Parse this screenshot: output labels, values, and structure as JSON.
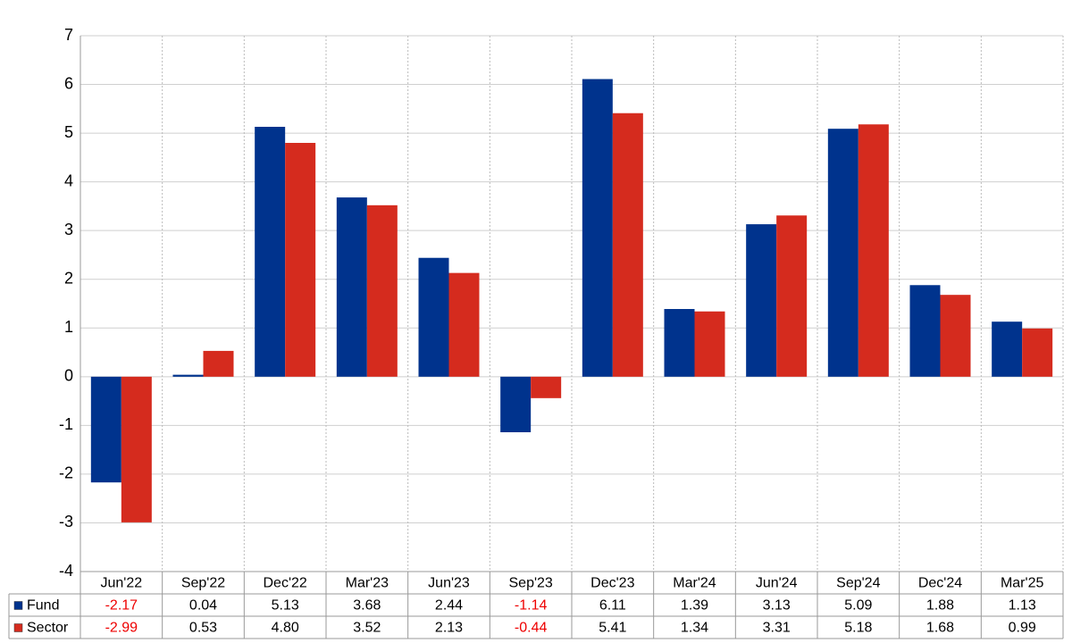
{
  "chart_data": {
    "type": "bar",
    "categories": [
      "Jun'22",
      "Sep'22",
      "Dec'22",
      "Mar'23",
      "Jun'23",
      "Sep'23",
      "Dec'23",
      "Mar'24",
      "Jun'24",
      "Sep'24",
      "Dec'24",
      "Mar'25"
    ],
    "series": [
      {
        "name": "Fund",
        "color": "#00338d",
        "values": [
          -2.17,
          0.04,
          5.13,
          3.68,
          2.44,
          -1.14,
          6.11,
          1.39,
          3.13,
          5.09,
          1.88,
          1.13
        ],
        "value_labels": [
          "-2.17",
          "0.04",
          "5.13",
          "3.68",
          "2.44",
          "-1.14",
          "6.11",
          "1.39",
          "3.13",
          "5.09",
          "1.88",
          "1.13"
        ]
      },
      {
        "name": "Sector",
        "color": "#d52b1e",
        "values": [
          -2.99,
          0.53,
          4.8,
          3.52,
          2.13,
          -0.44,
          5.41,
          1.34,
          3.31,
          5.18,
          1.68,
          0.99
        ],
        "value_labels": [
          "-2.99",
          "0.53",
          "4.80",
          "3.52",
          "2.13",
          "-0.44",
          "5.41",
          "1.34",
          "3.31",
          "5.18",
          "1.68",
          "0.99"
        ]
      }
    ],
    "ylim": [
      -4,
      7
    ],
    "yticks": [
      -4,
      -3,
      -2,
      -1,
      0,
      1,
      2,
      3,
      4,
      5,
      6,
      7
    ],
    "grid": true
  }
}
